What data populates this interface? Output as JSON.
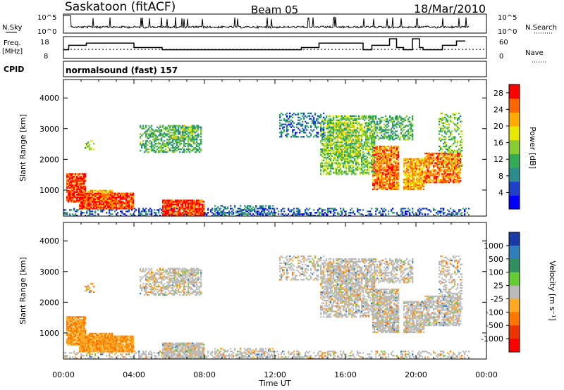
{
  "header": {
    "station": "Saskatoon (fitACF)",
    "beam": "Beam 05",
    "date": "18/Mar/2010"
  },
  "strip_labels": {
    "nsky": "N.Sky",
    "nsky_ticks": [
      "10^5",
      "10^0"
    ],
    "nsearch": "N.Search",
    "nsearch_ticks": [
      "10^5",
      "10^0"
    ],
    "freq_line1": "Freq.",
    "freq_line2": "[MHz]",
    "freq_ticks": [
      "18",
      "8"
    ],
    "nave": "Nave",
    "nave_ticks": [
      "60",
      "0"
    ],
    "cpid": "CPID",
    "cpid_value": "normalsound (fast) 157"
  },
  "chart_data": [
    {
      "type": "line",
      "title": "Freq. / Nave",
      "x_unit": "hours UT",
      "xlim": [
        0,
        24
      ],
      "freq_series": {
        "name": "Freq.",
        "ylim": [
          8,
          18
        ],
        "x": [
          0,
          0.3,
          0.3,
          1.3,
          1.3,
          4.0,
          4.0,
          5.6,
          5.6,
          8.0,
          8.0,
          13.5,
          13.5,
          14.5,
          14.5,
          17.0,
          17.0,
          17.5,
          17.5,
          18.5,
          18.5,
          18.9,
          18.9,
          19.3,
          19.3,
          19.8,
          19.8,
          20.2,
          20.2,
          20.4,
          20.4,
          21.5,
          21.5,
          22.3,
          22.3,
          22.8
        ],
        "y": [
          12,
          12,
          14,
          14,
          15,
          15,
          13,
          13,
          12,
          12,
          12,
          12,
          13,
          13,
          15,
          15,
          12,
          12,
          14,
          14,
          17,
          17,
          13,
          13,
          12,
          12,
          17,
          17,
          13,
          13,
          12,
          12,
          14,
          14,
          16,
          16
        ]
      },
      "nave_series": {
        "name": "Nave",
        "ylim": [
          0,
          60
        ],
        "constant": 25
      }
    },
    {
      "type": "heatmap",
      "title": "Power",
      "xlabel": "Time UT",
      "ylabel": "Slant Range [km]",
      "colorbar_label": "Power [dB]",
      "xlim": [
        0,
        24
      ],
      "ylim": [
        150,
        4600
      ],
      "x_ticks": [
        "00:00",
        "04:00",
        "08:00",
        "12:00",
        "16:00",
        "20:00",
        "00:00"
      ],
      "y_ticks": [
        1000,
        2000,
        3000,
        4000
      ],
      "colorbar_ticks": [
        4,
        8,
        12,
        16,
        20,
        24,
        28
      ],
      "colorbar_range": [
        0,
        30
      ],
      "colors": [
        "#0000ff",
        "#1e3fc8",
        "#2c8c8c",
        "#33aa55",
        "#88cc33",
        "#e8e800",
        "#ffaa00",
        "#ff6600",
        "#ff0000"
      ]
    },
    {
      "type": "heatmap",
      "title": "Velocity",
      "xlabel": "Time UT",
      "ylabel": "Slant Range [km]",
      "colorbar_label": "Velocity [m s⁻¹]",
      "xlim": [
        0,
        24
      ],
      "ylim": [
        150,
        4600
      ],
      "x_ticks": [
        "00:00",
        "04:00",
        "08:00",
        "12:00",
        "16:00",
        "20:00",
        "00:00"
      ],
      "y_ticks": [
        1000,
        2000,
        3000,
        4000
      ],
      "colorbar_ticks": [
        "1000",
        "500",
        "100",
        "25",
        "-25",
        "-100",
        "-500",
        "-1000"
      ],
      "colors": [
        "#1a3aa8",
        "#2f7fbf",
        "#2f8f5f",
        "#66cc33",
        "#bbbbbb",
        "#ffaa22",
        "#ff7700",
        "#ee3300",
        "#ff0000"
      ]
    }
  ]
}
